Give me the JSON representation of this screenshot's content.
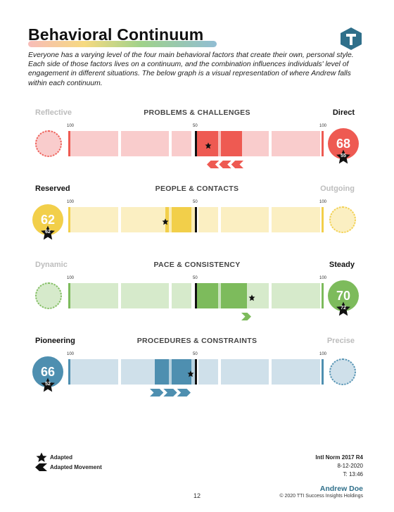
{
  "title": "Behavioral Continuum",
  "intro": "Everyone has a varying level of the four main behavioral factors that create their own, personal style.  Each side of those factors lives on a continuum, and the combination influences individuals' level of engagement in different situations.  The below graph is a visual representation of where Andrew falls within each continuum.",
  "colors": {
    "red": "#ee5a52",
    "yellow": "#f2cf4a",
    "green": "#7dbb5c",
    "blue": "#4e8fb0"
  },
  "scale_labels": {
    "left": "100",
    "center": "50",
    "right": "100"
  },
  "continua": [
    {
      "title": "PROBLEMS & CHALLENGES",
      "left_label": "Reflective",
      "right_label": "Direct",
      "active_side": "right",
      "natural_score": "68",
      "adapted_score": "55",
      "movement": "left"
    },
    {
      "title": "PEOPLE & CONTACTS",
      "left_label": "Reserved",
      "right_label": "Outgoing",
      "active_side": "left",
      "natural_score": "62",
      "adapted_score": "62",
      "movement": "none"
    },
    {
      "title": "PACE & CONSISTENCY",
      "left_label": "Dynamic",
      "right_label": "Steady",
      "active_side": "right",
      "natural_score": "70",
      "adapted_score": "72",
      "movement": "right"
    },
    {
      "title": "PROCEDURES & CONSTRAINTS",
      "left_label": "Pioneering",
      "right_label": "Precise",
      "active_side": "left",
      "natural_score": "66",
      "adapted_score": "52",
      "movement": "right"
    }
  ],
  "legend": {
    "adapted": "Adapted",
    "adapted_movement": "Adapted Movement"
  },
  "norm": {
    "line1": "Intl Norm 2017 R4",
    "line2": "8-12-2020",
    "line3": "T: 13:46"
  },
  "footer": {
    "name": "Andrew Doe",
    "copyright": "© 2020 TTI Success Insights Holdings",
    "page": "12"
  }
}
